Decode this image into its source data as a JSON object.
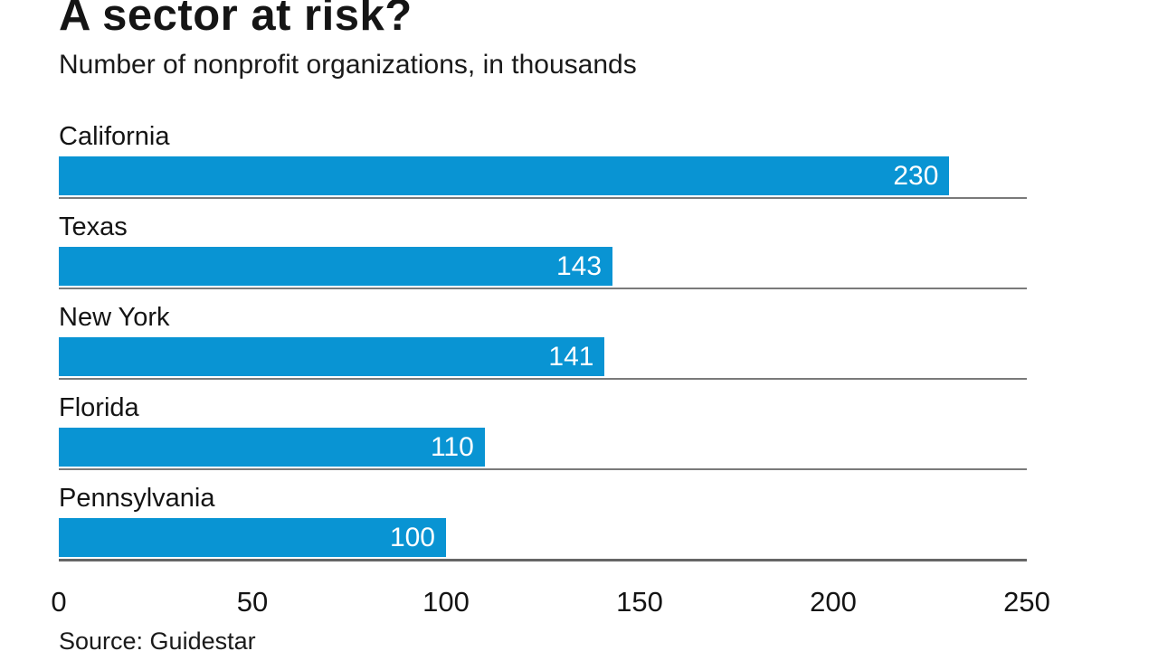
{
  "header": {
    "title": "A sector at risk?",
    "subtitle": "Number of nonprofit organizations, in thousands"
  },
  "footer": {
    "source": "Source: Guidestar"
  },
  "chart_data": {
    "type": "bar",
    "orientation": "horizontal",
    "title": "A sector at risk?",
    "subtitle": "Number of nonprofit organizations, in thousands",
    "categories": [
      "California",
      "Texas",
      "New York",
      "Florida",
      "Pennsylvania"
    ],
    "values": [
      230,
      143,
      141,
      110,
      100
    ],
    "value_labels": [
      "230",
      "143",
      "141",
      "110",
      "100"
    ],
    "xlabel": "",
    "ylabel": "",
    "xlim": [
      0,
      250
    ],
    "xticks": [
      "0",
      "50",
      "100",
      "150",
      "200",
      "250"
    ],
    "xtick_values": [
      0,
      50,
      100,
      150,
      200,
      250
    ],
    "grid": false,
    "legend": "none",
    "row_separator_lines": true,
    "source": "Source: Guidestar"
  },
  "colors": {
    "bar": "#0994d3",
    "bar_value_text": "#ffffff",
    "separator_line": "#7a7a7a",
    "axis_line": "#666666",
    "text": "#141414",
    "background": "#ffffff"
  }
}
